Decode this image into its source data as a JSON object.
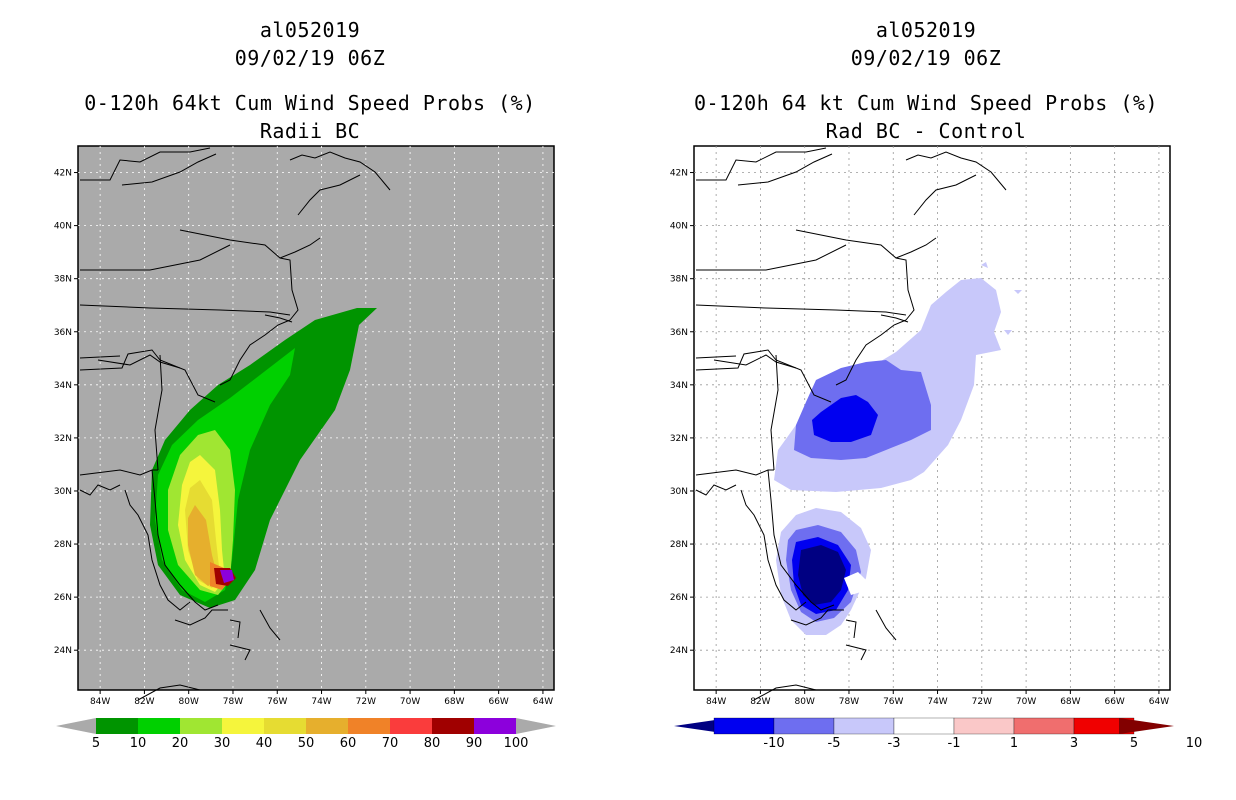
{
  "left": {
    "storm_id": "al052019",
    "datetime": "09/02/19 06Z",
    "title": "0-120h 64kt Cum Wind Speed Probs (%)",
    "subtitle": "Radii BC",
    "background_color": "#aaaaaa",
    "colorbar": {
      "labels": [
        "5",
        "10",
        "20",
        "30",
        "40",
        "50",
        "60",
        "70",
        "80",
        "90",
        "100"
      ],
      "colors": [
        "#009400",
        "#00d000",
        "#a0e632",
        "#f5f53c",
        "#e6dc32",
        "#e6af2d",
        "#f08228",
        "#fa3c3c",
        "#a00000",
        "#8c00dc"
      ]
    }
  },
  "right": {
    "storm_id": "al052019",
    "datetime": "09/02/19 06Z",
    "title": "0-120h 64 kt Cum Wind Speed Probs (%)",
    "subtitle": "Rad BC - Control",
    "background_color": "#ffffff",
    "colorbar": {
      "labels": [
        "-10",
        "-5",
        "-3",
        "-1",
        "1",
        "3",
        "5",
        "10"
      ],
      "colors": [
        "#000082",
        "#0000f0",
        "#6e6ef0",
        "#c8c8fa",
        "#ffffff",
        "#fac8c8",
        "#f06e6e",
        "#f00000",
        "#820000"
      ]
    }
  },
  "axes": {
    "lat_labels": [
      "42N",
      "40N",
      "38N",
      "36N",
      "34N",
      "32N",
      "30N",
      "28N",
      "26N",
      "24N"
    ],
    "lon_labels": [
      "84W",
      "82W",
      "80W",
      "78W",
      "76W",
      "74W",
      "72W",
      "70W",
      "68W",
      "66W",
      "64W"
    ]
  }
}
